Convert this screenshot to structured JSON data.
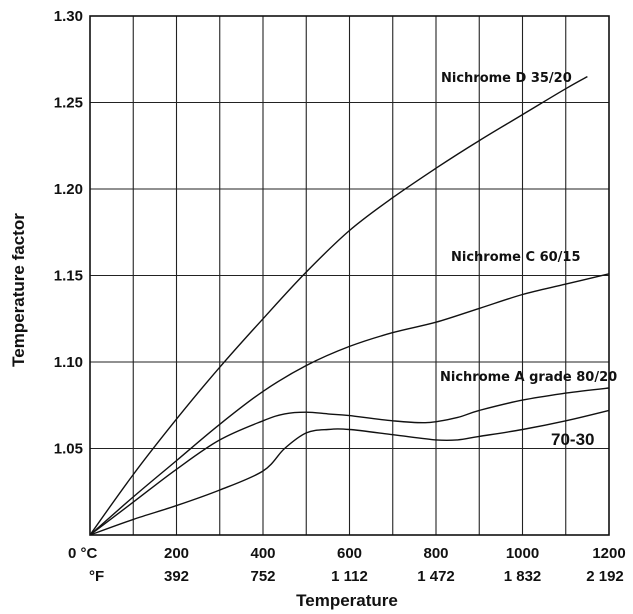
{
  "chart_data": {
    "type": "line",
    "xlabel": "Temperature",
    "ylabel": "Temperature factor",
    "xlim": [
      0,
      1200
    ],
    "ylim": [
      1.0,
      1.3
    ],
    "grid": true,
    "x_ticks_c": [
      "200",
      "400",
      "600",
      "800",
      "1000",
      "1200"
    ],
    "x_ticks_f": [
      "392",
      "752",
      "1 112",
      "1 472",
      "1 832",
      "2 192"
    ],
    "origin_label_c": "0 °C",
    "origin_label_f": "°F",
    "y_ticks": [
      "1.05",
      "1.10",
      "1.15",
      "1.20",
      "1.25",
      "1.30"
    ],
    "series": [
      {
        "name": "Nichrome D 35/20",
        "x": [
          0,
          100,
          200,
          300,
          400,
          500,
          600,
          700,
          800,
          900,
          1000,
          1100,
          1150
        ],
        "y": [
          1.0,
          1.035,
          1.067,
          1.097,
          1.125,
          1.152,
          1.176,
          1.195,
          1.212,
          1.228,
          1.243,
          1.258,
          1.265
        ]
      },
      {
        "name": "Nichrome C 60/15",
        "x": [
          0,
          100,
          200,
          300,
          400,
          500,
          600,
          700,
          800,
          900,
          1000,
          1100,
          1200
        ],
        "y": [
          1.0,
          1.022,
          1.043,
          1.064,
          1.083,
          1.098,
          1.109,
          1.117,
          1.123,
          1.131,
          1.139,
          1.145,
          1.151
        ]
      },
      {
        "name": "Nichrome A grade 80/20",
        "x": [
          0,
          100,
          200,
          300,
          400,
          450,
          500,
          550,
          600,
          700,
          780,
          850,
          900,
          1000,
          1100,
          1200
        ],
        "y": [
          1.0,
          1.019,
          1.038,
          1.055,
          1.066,
          1.07,
          1.071,
          1.07,
          1.069,
          1.066,
          1.065,
          1.068,
          1.072,
          1.078,
          1.082,
          1.085
        ]
      },
      {
        "name": "70-30",
        "x": [
          0,
          100,
          200,
          300,
          400,
          450,
          500,
          550,
          600,
          700,
          800,
          850,
          900,
          1000,
          1100,
          1200
        ],
        "y": [
          1.0,
          1.009,
          1.017,
          1.026,
          1.037,
          1.05,
          1.059,
          1.061,
          1.061,
          1.058,
          1.055,
          1.055,
          1.057,
          1.061,
          1.066,
          1.072
        ]
      }
    ]
  }
}
